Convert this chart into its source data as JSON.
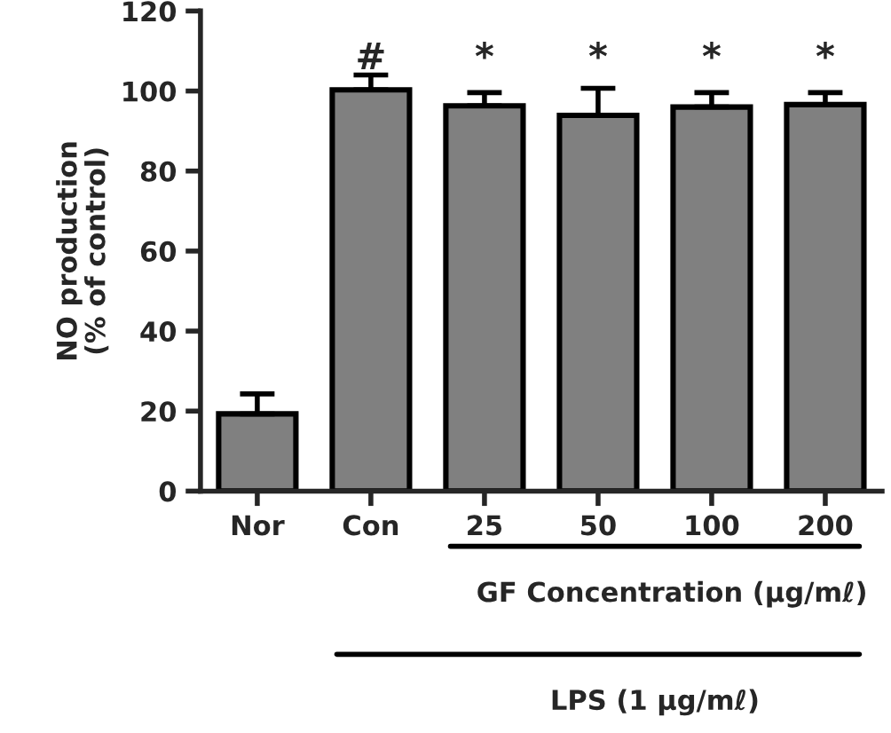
{
  "chart_data": {
    "type": "bar",
    "ylabel": "NO production\n(% of control)",
    "categories": [
      "Nor",
      "Con",
      "25",
      "50",
      "100",
      "200"
    ],
    "values": [
      19.3,
      100.3,
      96.3,
      93.9,
      96,
      96.6
    ],
    "errors": [
      5,
      3.7,
      3.3,
      6.8,
      3.6,
      3
    ],
    "color": "#808080",
    "ylim": [
      0,
      120
    ],
    "yticks": [
      0,
      20,
      40,
      60,
      80,
      100,
      120
    ],
    "annotations": [
      "#",
      "*",
      "*",
      "*",
      "*",
      "GF Concentration (μg/mℓ)",
      "LPS (1 μg/mℓ)"
    ]
  }
}
